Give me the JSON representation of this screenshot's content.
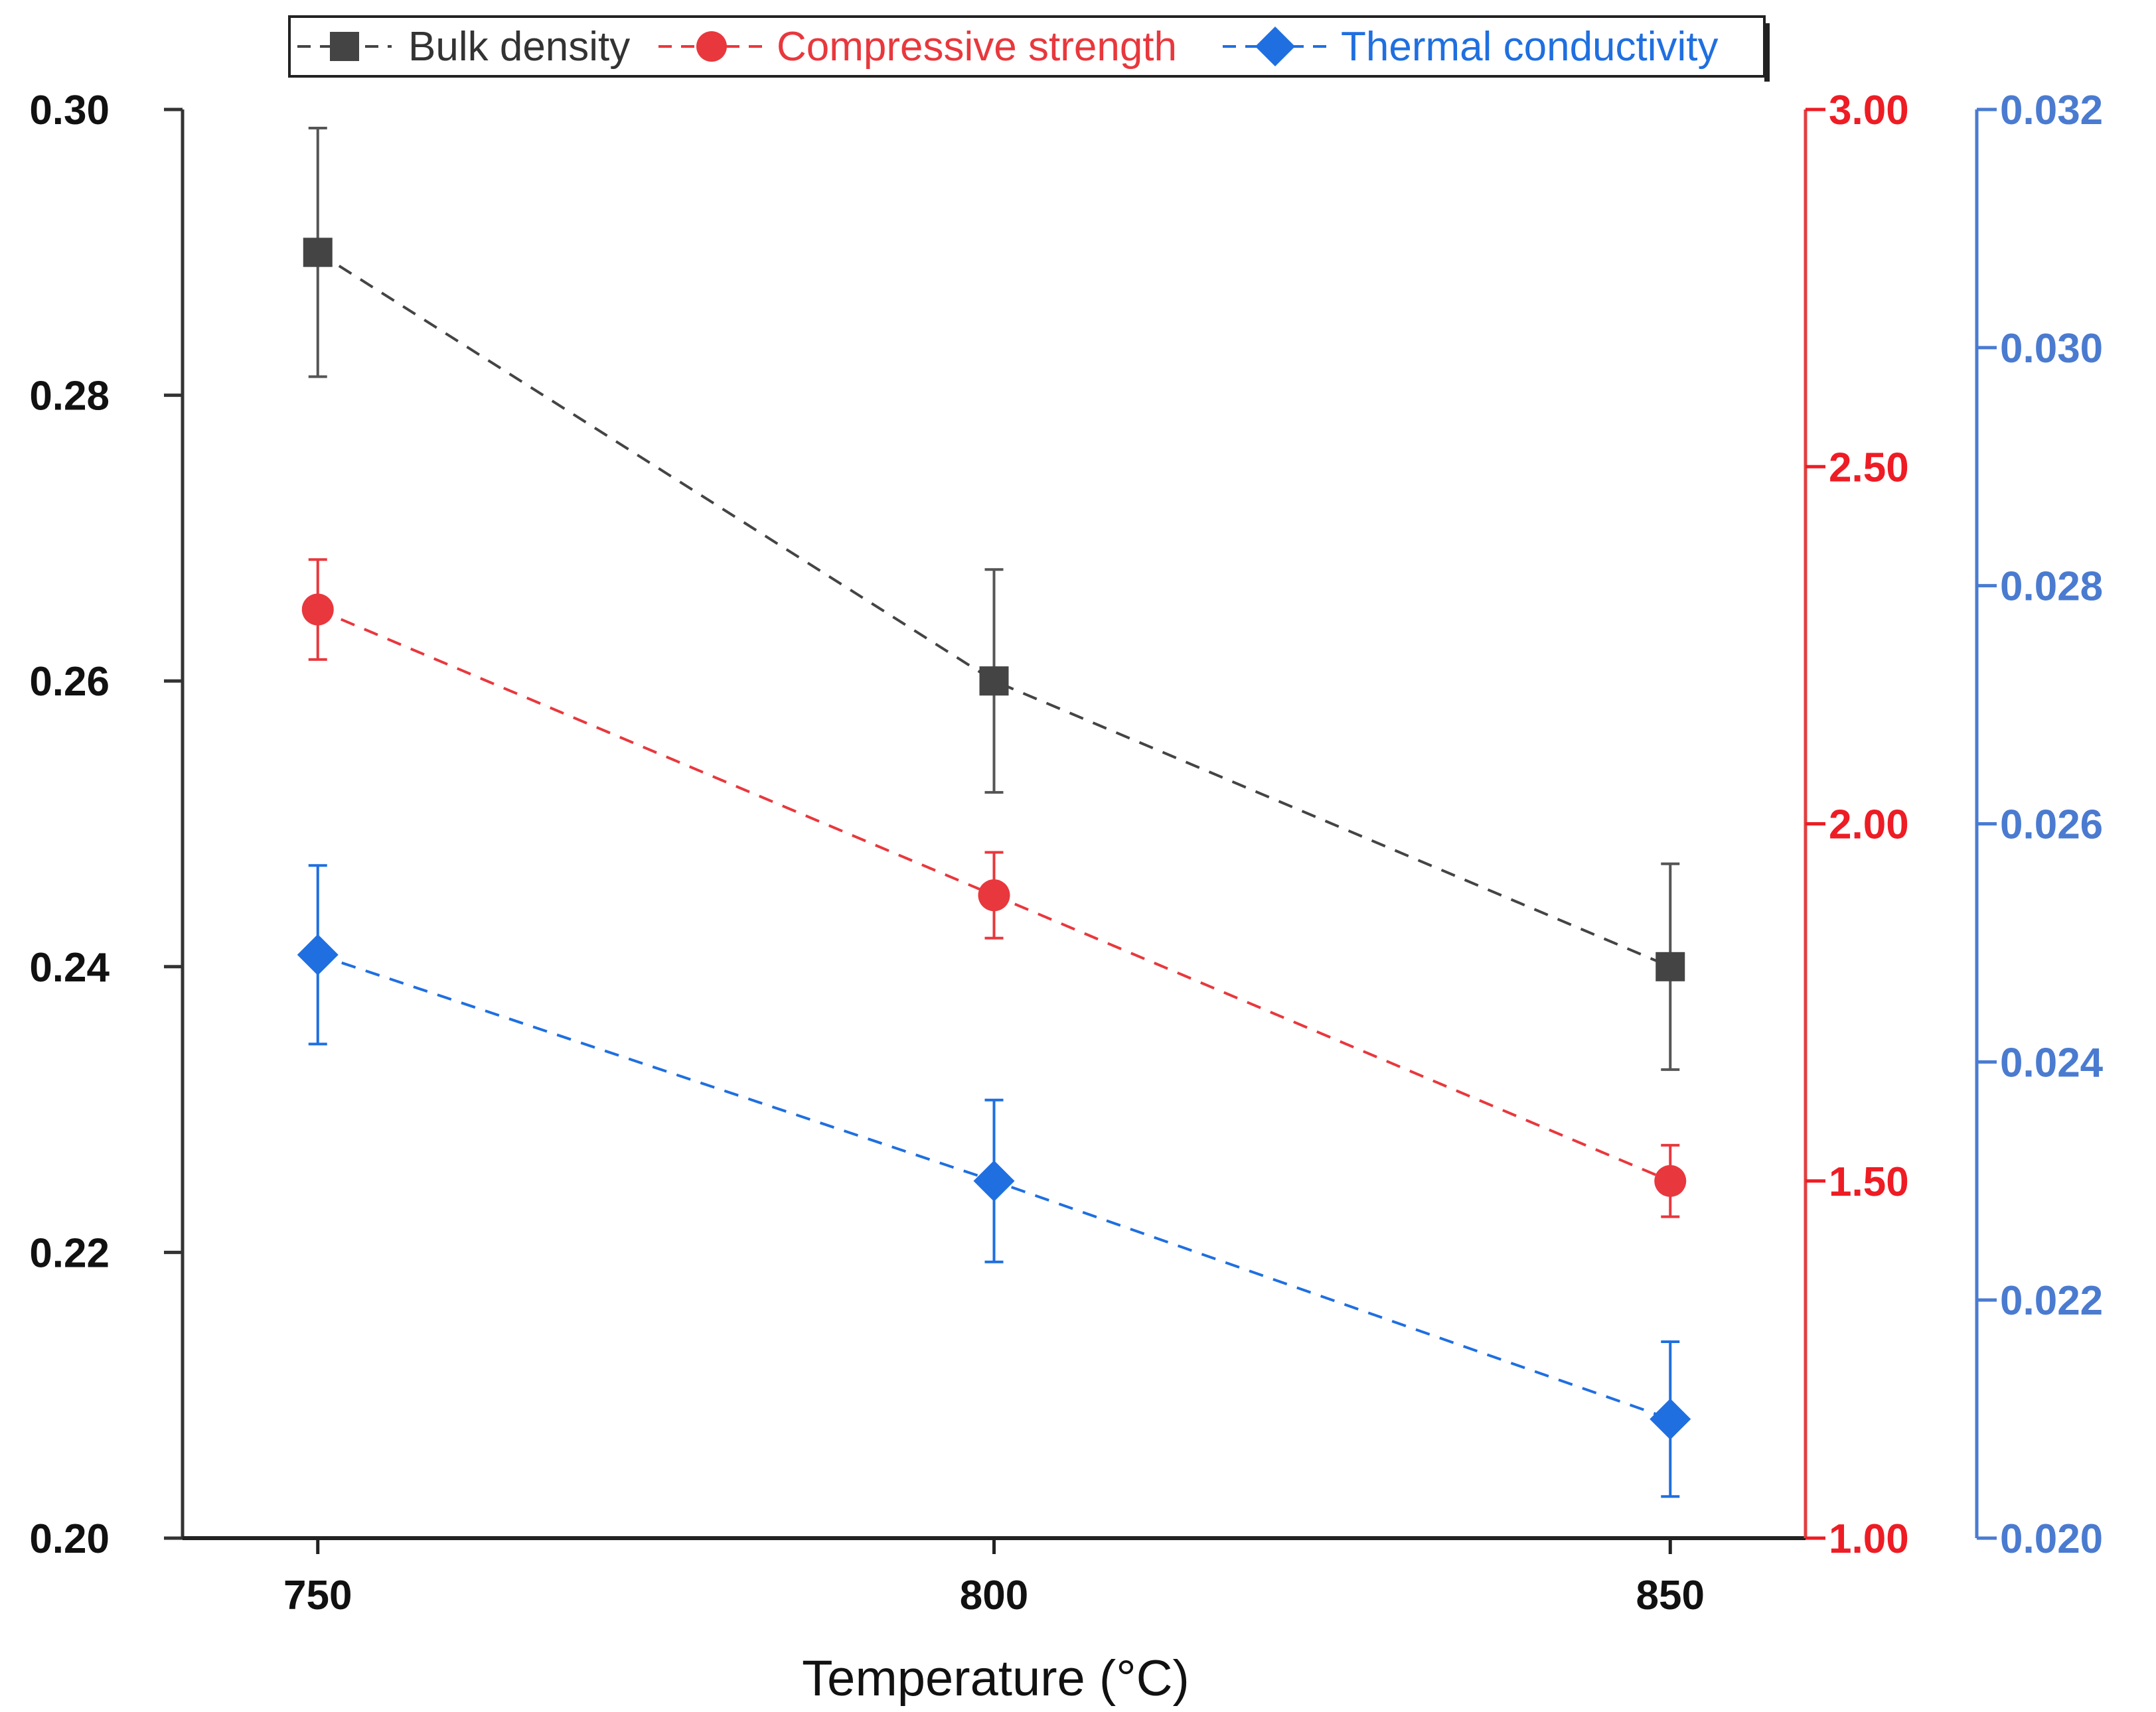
{
  "chart_data": {
    "type": "line",
    "title": "",
    "xlabel": "Temperature (°C)",
    "x": [
      750,
      800,
      850
    ],
    "xlim": [
      740,
      860
    ],
    "x_ticks": [
      "750",
      "800",
      "850"
    ],
    "grid": false,
    "legend_position": "top",
    "series": [
      {
        "name": "Bulk density",
        "axis": "left",
        "color": "#444444",
        "marker": "square",
        "values": [
          0.29,
          0.26,
          0.24
        ],
        "errors": [
          0.0087,
          0.0078,
          0.0072
        ]
      },
      {
        "name": "Compressive strength",
        "axis": "right1",
        "color": "#e8383d",
        "marker": "circle",
        "values": [
          2.3,
          1.9,
          1.5
        ],
        "errors": [
          0.07,
          0.06,
          0.05
        ]
      },
      {
        "name": "Thermal conductivity",
        "axis": "right2",
        "color": "#1f6fe0",
        "marker": "diamond",
        "values": [
          0.0249,
          0.023,
          0.021
        ],
        "errors": [
          0.00075,
          0.00068,
          0.00065
        ]
      }
    ],
    "axes": {
      "left": {
        "ylim": [
          0.2,
          0.3
        ],
        "ticks": [
          "0.20",
          "0.22",
          "0.24",
          "0.26",
          "0.28",
          "0.30"
        ],
        "color": "#111111"
      },
      "right1": {
        "ylim": [
          1.0,
          3.0
        ],
        "ticks": [
          "1.00",
          "1.50",
          "2.00",
          "2.50",
          "3.00"
        ],
        "color": "#ee1c24"
      },
      "right2": {
        "ylim": [
          0.02,
          0.032
        ],
        "ticks": [
          "0.020",
          "0.022",
          "0.024",
          "0.026",
          "0.028",
          "0.030",
          "0.032"
        ],
        "color": "#4a7bd0"
      }
    }
  }
}
